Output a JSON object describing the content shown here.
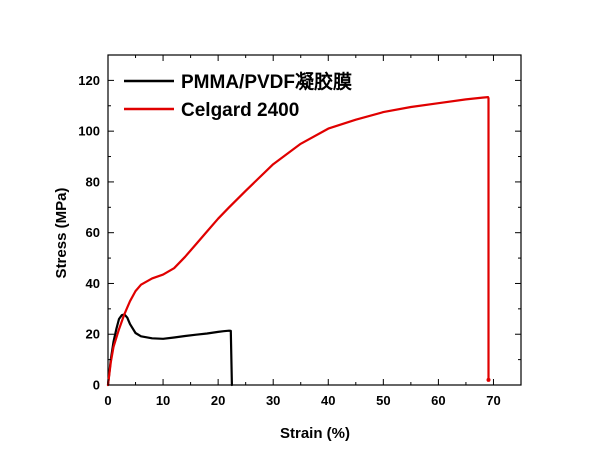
{
  "chart_data": {
    "type": "line",
    "xlabel": "Strain (%)",
    "ylabel": "Stress (MPa)",
    "xlim": [
      0,
      75
    ],
    "ylim": [
      0,
      130
    ],
    "xticks": [
      0,
      10,
      20,
      30,
      40,
      50,
      60,
      70
    ],
    "yticks": [
      0,
      20,
      40,
      60,
      80,
      100,
      120
    ],
    "grid": false,
    "legend_position": "top-left",
    "series": [
      {
        "name": "PMMA/PVDF凝胶膜",
        "color": "#000000",
        "x": [
          0,
          0.5,
          1,
          1.5,
          2,
          2.5,
          3,
          3.5,
          4,
          5,
          6,
          8,
          10,
          12,
          14,
          16,
          18,
          20,
          21,
          22,
          22.3,
          22.5
        ],
        "y": [
          0,
          10,
          17,
          22,
          26,
          27.5,
          27.8,
          26.5,
          24,
          20.5,
          19.2,
          18.4,
          18.2,
          18.7,
          19.3,
          19.8,
          20.3,
          20.9,
          21.2,
          21.4,
          21.3,
          0
        ]
      },
      {
        "name": "Celgard 2400",
        "color": "#e00000",
        "x": [
          0,
          0.5,
          1,
          2,
          3,
          4,
          5,
          6,
          8,
          10,
          12,
          14,
          16,
          18,
          20,
          22,
          25,
          30,
          35,
          40,
          45,
          50,
          55,
          60,
          65,
          68,
          69,
          69.1,
          69.1
        ],
        "y": [
          0,
          9,
          15,
          22,
          28,
          33,
          37,
          39.5,
          42,
          43.5,
          46,
          50.5,
          55.5,
          60.5,
          65.5,
          70,
          76.5,
          87,
          95,
          101,
          104.5,
          107.5,
          109.5,
          111,
          112.5,
          113.2,
          113.4,
          113,
          2
        ]
      }
    ]
  }
}
